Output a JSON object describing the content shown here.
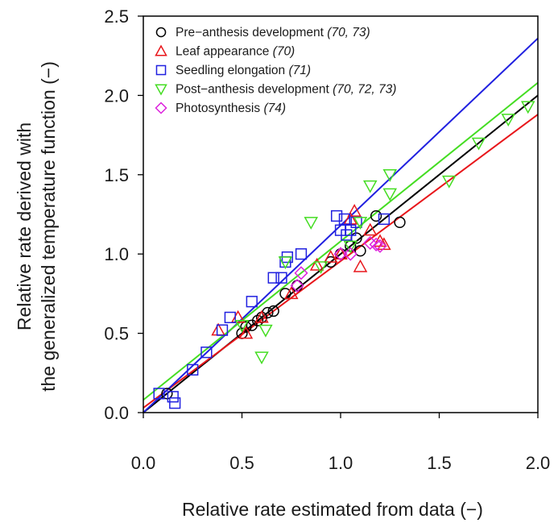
{
  "chart_data": {
    "type": "scatter",
    "xlabel": "Relative rate estimated from data (−)",
    "ylabel_line1": "Relative rate derived with",
    "ylabel_line2": "the generalized temperature function (−)",
    "xlim": [
      0,
      2
    ],
    "ylim": [
      0,
      2.5
    ],
    "xticks": [
      "0.0",
      "0.5",
      "1.0",
      "1.5",
      "2.0"
    ],
    "yticks": [
      "0.0",
      "0.5",
      "1.0",
      "1.5",
      "2.0",
      "2.5"
    ],
    "legend_position": "top-left",
    "series": [
      {
        "name": "Pre−anthesis development",
        "refs": "(70, 73)",
        "marker": "circle",
        "color": "#000000",
        "points": [
          [
            0.12,
            0.12
          ],
          [
            0.5,
            0.5
          ],
          [
            0.52,
            0.54
          ],
          [
            0.55,
            0.55
          ],
          [
            0.58,
            0.58
          ],
          [
            0.6,
            0.6
          ],
          [
            0.63,
            0.63
          ],
          [
            0.66,
            0.64
          ],
          [
            0.72,
            0.75
          ],
          [
            0.78,
            0.8
          ],
          [
            0.95,
            0.95
          ],
          [
            1.0,
            1.0
          ],
          [
            1.05,
            1.05
          ],
          [
            1.08,
            1.1
          ],
          [
            1.1,
            1.02
          ],
          [
            1.18,
            1.24
          ],
          [
            1.3,
            1.2
          ]
        ],
        "fit": [
          [
            0,
            0
          ],
          [
            2,
            2.0
          ]
        ]
      },
      {
        "name": "Leaf appearance",
        "refs": "(70)",
        "marker": "triangle-up",
        "color": "#e8161b",
        "points": [
          [
            0.38,
            0.52
          ],
          [
            0.48,
            0.6
          ],
          [
            0.52,
            0.5
          ],
          [
            0.6,
            0.6
          ],
          [
            0.75,
            0.75
          ],
          [
            0.88,
            0.93
          ],
          [
            0.95,
            0.98
          ],
          [
            1.0,
            1.0
          ],
          [
            1.05,
            1.22
          ],
          [
            1.07,
            1.27
          ],
          [
            1.1,
            0.92
          ],
          [
            1.15,
            1.15
          ],
          [
            1.2,
            1.08
          ],
          [
            1.22,
            1.06
          ]
        ],
        "fit": [
          [
            0,
            0.03
          ],
          [
            2,
            1.88
          ]
        ]
      },
      {
        "name": "Seedling elongation",
        "refs": "(71)",
        "marker": "square",
        "color": "#2020e0",
        "points": [
          [
            0.08,
            0.12
          ],
          [
            0.15,
            0.1
          ],
          [
            0.16,
            0.06
          ],
          [
            0.25,
            0.27
          ],
          [
            0.32,
            0.38
          ],
          [
            0.4,
            0.52
          ],
          [
            0.44,
            0.6
          ],
          [
            0.55,
            0.7
          ],
          [
            0.66,
            0.85
          ],
          [
            0.7,
            0.85
          ],
          [
            0.72,
            0.95
          ],
          [
            0.73,
            0.98
          ],
          [
            0.8,
            1.0
          ],
          [
            0.98,
            1.24
          ],
          [
            1.0,
            1.15
          ],
          [
            1.02,
            1.22
          ],
          [
            1.03,
            1.12
          ],
          [
            1.05,
            1.15
          ],
          [
            1.08,
            1.2
          ],
          [
            1.22,
            1.22
          ]
        ],
        "fit": [
          [
            0,
            0
          ],
          [
            2,
            2.36
          ]
        ]
      },
      {
        "name": "Post−anthesis development",
        "refs": "(70, 72, 73)",
        "marker": "triangle-down",
        "color": "#44dd22",
        "points": [
          [
            0.5,
            0.55
          ],
          [
            0.6,
            0.35
          ],
          [
            0.62,
            0.52
          ],
          [
            0.72,
            0.95
          ],
          [
            0.85,
            1.2
          ],
          [
            0.9,
            0.92
          ],
          [
            1.05,
            1.05
          ],
          [
            1.1,
            1.2
          ],
          [
            1.15,
            1.43
          ],
          [
            1.25,
            1.38
          ],
          [
            1.25,
            1.5
          ],
          [
            1.55,
            1.46
          ],
          [
            1.7,
            1.7
          ],
          [
            1.85,
            1.85
          ],
          [
            1.95,
            1.93
          ]
        ],
        "fit": [
          [
            0,
            0.08
          ],
          [
            2,
            2.08
          ]
        ]
      },
      {
        "name": "Photosynthesis",
        "refs": "(74)",
        "marker": "diamond",
        "color": "#dd22dd",
        "points": [
          [
            0.8,
            0.88
          ],
          [
            0.78,
            0.8
          ],
          [
            1.0,
            1.0
          ],
          [
            1.05,
            1.0
          ],
          [
            1.15,
            1.07
          ],
          [
            1.18,
            1.06
          ],
          [
            1.2,
            1.05
          ]
        ],
        "fit": null
      }
    ]
  }
}
